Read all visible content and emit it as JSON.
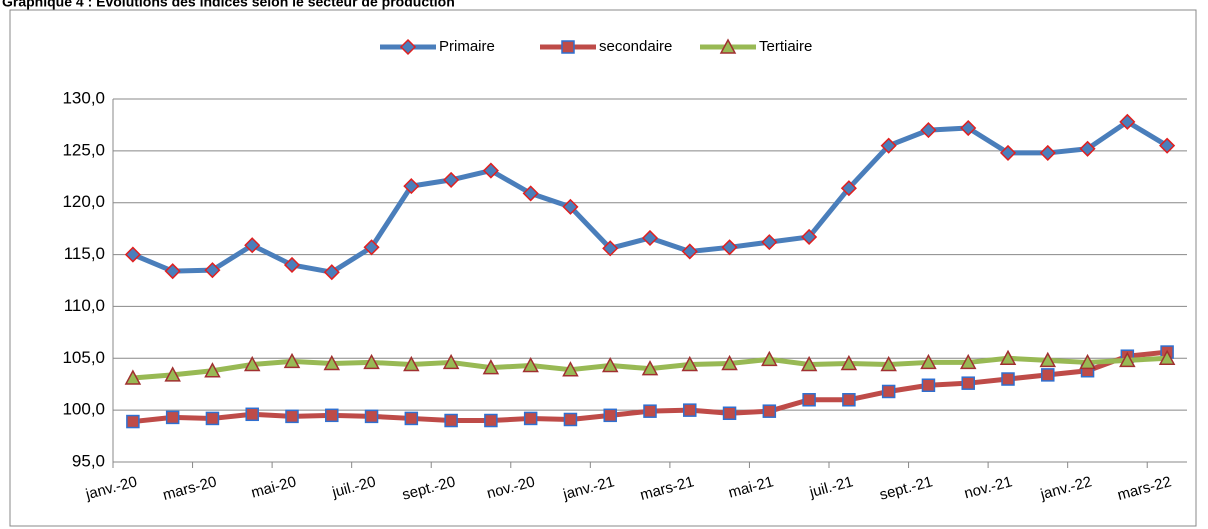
{
  "chart_data": {
    "type": "line",
    "title": "Graphique 4 : Evolutions des indices selon le secteur de production",
    "categories": [
      "janv.-20",
      null,
      "mars-20",
      null,
      "mai-20",
      null,
      "juil.-20",
      null,
      "sept.-20",
      null,
      "nov.-20",
      null,
      "janv.-21",
      null,
      "mars-21",
      null,
      "mai-21",
      null,
      "juil.-21",
      null,
      "sept.-21",
      null,
      "nov.-21",
      null,
      "janv.-22",
      null,
      "mars-22"
    ],
    "series": [
      {
        "name": "Primaire",
        "color": "#4a7ebb",
        "values": [
          115.0,
          113.4,
          113.5,
          115.9,
          114.0,
          113.3,
          115.7,
          121.6,
          122.2,
          123.1,
          120.9,
          119.6,
          115.6,
          116.6,
          115.3,
          115.7,
          116.2,
          116.7,
          121.4,
          125.5,
          127.0,
          127.2,
          124.8,
          124.8,
          125.2,
          127.8,
          125.5
        ]
      },
      {
        "name": "secondaire",
        "color": "#be4b48",
        "values": [
          98.9,
          99.3,
          99.2,
          99.6,
          99.4,
          99.5,
          99.4,
          99.2,
          99.0,
          99.0,
          99.2,
          99.1,
          99.5,
          99.9,
          100.0,
          99.7,
          99.9,
          101.0,
          101.0,
          101.8,
          102.4,
          102.6,
          103.0,
          103.4,
          103.8,
          105.2,
          105.6
        ]
      },
      {
        "name": "Tertiaire",
        "color": "#98b954",
        "values": [
          103.1,
          103.4,
          103.8,
          104.4,
          104.7,
          104.5,
          104.6,
          104.4,
          104.6,
          104.1,
          104.3,
          103.9,
          104.3,
          104.0,
          104.4,
          104.5,
          104.9,
          104.4,
          104.5,
          104.4,
          104.6,
          104.6,
          105.0,
          104.8,
          104.6,
          104.8,
          105.0
        ]
      }
    ],
    "ylim": [
      95,
      130
    ],
    "yticks": [
      {
        "value": 95,
        "label": "95,0"
      },
      {
        "value": 100,
        "label": "100,0"
      },
      {
        "value": 105,
        "label": "105,0"
      },
      {
        "value": 110,
        "label": "110,0"
      },
      {
        "value": 115,
        "label": "115,0"
      },
      {
        "value": 120,
        "label": "120,0"
      },
      {
        "value": 125,
        "label": "125,0"
      },
      {
        "value": 130,
        "label": "130,0"
      }
    ],
    "grid": true,
    "legend": "top"
  }
}
